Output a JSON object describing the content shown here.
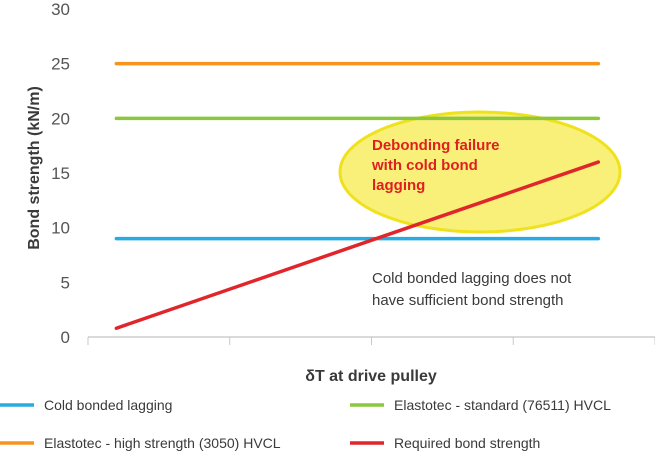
{
  "chart_data": {
    "type": "line",
    "xlabel": "δT at drive pulley",
    "ylabel": "Bond strength (kN/m)",
    "ylim": [
      0,
      30
    ],
    "yticks": [
      "0",
      "5",
      "10",
      "15",
      "20",
      "25",
      "30"
    ],
    "xlim": [
      0,
      1
    ],
    "x_gridlines": 5,
    "grid": false,
    "legend_position": "bottom",
    "series": [
      {
        "name": "Cold bonded lagging",
        "color": "#29abe2",
        "x": [
          0.05,
          0.9
        ],
        "y": [
          9,
          9
        ]
      },
      {
        "name": "Elastotec - standard (76511) HVCL",
        "color": "#8dc63f",
        "x": [
          0.05,
          0.9
        ],
        "y": [
          20,
          20
        ]
      },
      {
        "name": "Elastotec - high strength (3050) HVCL",
        "color": "#f7941d",
        "x": [
          0.05,
          0.9
        ],
        "y": [
          25,
          25
        ]
      },
      {
        "name": "Required bond strength",
        "color": "#e0262b",
        "x": [
          0.05,
          0.9
        ],
        "y": [
          0.8,
          16
        ]
      }
    ],
    "annotations": {
      "highlight_lines": [
        "Debonding failure",
        "with cold bond",
        "lagging"
      ],
      "note_lines": [
        "Cold bonded lagging does not",
        "have sufficient bond strength"
      ],
      "highlight_color": "#f9f07a",
      "highlight_border": "#efe11c"
    }
  }
}
